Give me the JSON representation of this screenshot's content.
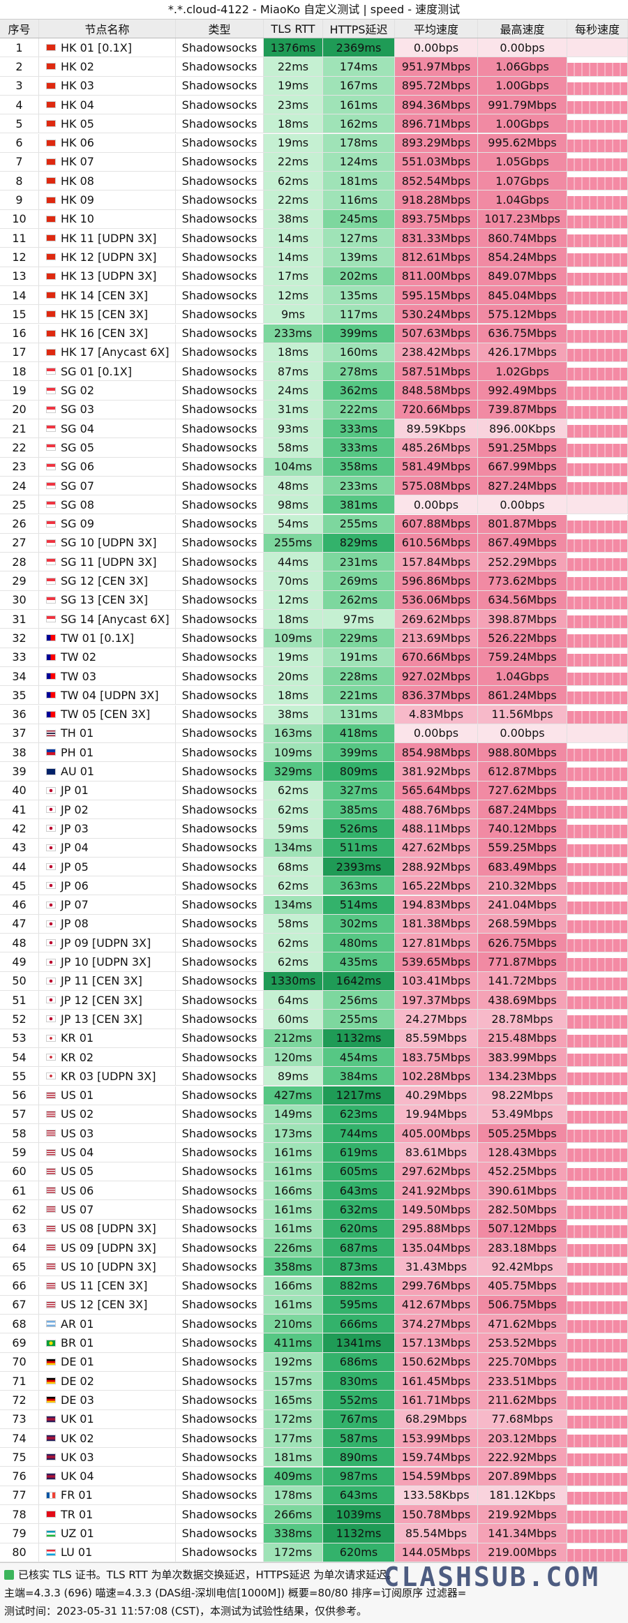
{
  "header": {
    "title": "*.*.cloud-4122 - MiaoKo 自定义测试 | speed - 速度测试"
  },
  "table": {
    "columns": [
      "序号",
      "节点名称",
      "类型",
      "TLS RTT",
      "HTTPS延迟",
      "平均速度",
      "最高速度",
      "每秒速度"
    ],
    "rows": [
      [
        "1",
        "HK 01 [0.1X]",
        "Shadowsocks",
        "1376ms",
        "2369ms",
        "0.00bps",
        "0.00bps"
      ],
      [
        "2",
        "HK 02",
        "Shadowsocks",
        "22ms",
        "174ms",
        "951.97Mbps",
        "1.06Gbps"
      ],
      [
        "3",
        "HK 03",
        "Shadowsocks",
        "19ms",
        "167ms",
        "895.72Mbps",
        "1.00Gbps"
      ],
      [
        "4",
        "HK 04",
        "Shadowsocks",
        "23ms",
        "161ms",
        "894.36Mbps",
        "991.79Mbps"
      ],
      [
        "5",
        "HK 05",
        "Shadowsocks",
        "18ms",
        "162ms",
        "896.71Mbps",
        "1.00Gbps"
      ],
      [
        "6",
        "HK 06",
        "Shadowsocks",
        "19ms",
        "178ms",
        "893.29Mbps",
        "995.62Mbps"
      ],
      [
        "7",
        "HK 07",
        "Shadowsocks",
        "22ms",
        "124ms",
        "551.03Mbps",
        "1.05Gbps"
      ],
      [
        "8",
        "HK 08",
        "Shadowsocks",
        "62ms",
        "181ms",
        "852.54Mbps",
        "1.07Gbps"
      ],
      [
        "9",
        "HK 09",
        "Shadowsocks",
        "22ms",
        "116ms",
        "918.28Mbps",
        "1.04Gbps"
      ],
      [
        "10",
        "HK 10",
        "Shadowsocks",
        "38ms",
        "245ms",
        "893.75Mbps",
        "1017.23Mbps"
      ],
      [
        "11",
        "HK 11 [UDPN 3X]",
        "Shadowsocks",
        "14ms",
        "127ms",
        "831.33Mbps",
        "860.74Mbps"
      ],
      [
        "12",
        "HK 12 [UDPN 3X]",
        "Shadowsocks",
        "14ms",
        "139ms",
        "812.61Mbps",
        "854.24Mbps"
      ],
      [
        "13",
        "HK 13 [UDPN 3X]",
        "Shadowsocks",
        "17ms",
        "202ms",
        "811.00Mbps",
        "849.07Mbps"
      ],
      [
        "14",
        "HK 14 [CEN 3X]",
        "Shadowsocks",
        "12ms",
        "135ms",
        "595.15Mbps",
        "845.04Mbps"
      ],
      [
        "15",
        "HK 15 [CEN 3X]",
        "Shadowsocks",
        "9ms",
        "117ms",
        "530.24Mbps",
        "575.12Mbps"
      ],
      [
        "16",
        "HK 16 [CEN 3X]",
        "Shadowsocks",
        "233ms",
        "399ms",
        "507.63Mbps",
        "636.75Mbps"
      ],
      [
        "17",
        "HK 17 [Anycast 6X]",
        "Shadowsocks",
        "18ms",
        "160ms",
        "238.42Mbps",
        "426.17Mbps"
      ],
      [
        "18",
        "SG 01 [0.1X]",
        "Shadowsocks",
        "87ms",
        "278ms",
        "587.51Mbps",
        "1.02Gbps"
      ],
      [
        "19",
        "SG 02",
        "Shadowsocks",
        "24ms",
        "362ms",
        "848.58Mbps",
        "992.49Mbps"
      ],
      [
        "20",
        "SG 03",
        "Shadowsocks",
        "31ms",
        "222ms",
        "720.66Mbps",
        "739.87Mbps"
      ],
      [
        "21",
        "SG 04",
        "Shadowsocks",
        "93ms",
        "333ms",
        "89.59Kbps",
        "896.00Kbps"
      ],
      [
        "22",
        "SG 05",
        "Shadowsocks",
        "58ms",
        "333ms",
        "485.26Mbps",
        "591.25Mbps"
      ],
      [
        "23",
        "SG 06",
        "Shadowsocks",
        "104ms",
        "358ms",
        "581.49Mbps",
        "667.99Mbps"
      ],
      [
        "24",
        "SG 07",
        "Shadowsocks",
        "48ms",
        "233ms",
        "575.08Mbps",
        "827.24Mbps"
      ],
      [
        "25",
        "SG 08",
        "Shadowsocks",
        "98ms",
        "381ms",
        "0.00bps",
        "0.00bps"
      ],
      [
        "26",
        "SG 09",
        "Shadowsocks",
        "54ms",
        "255ms",
        "607.88Mbps",
        "801.87Mbps"
      ],
      [
        "27",
        "SG 10 [UDPN 3X]",
        "Shadowsocks",
        "255ms",
        "829ms",
        "610.56Mbps",
        "867.49Mbps"
      ],
      [
        "28",
        "SG 11 [UDPN 3X]",
        "Shadowsocks",
        "44ms",
        "231ms",
        "157.84Mbps",
        "252.29Mbps"
      ],
      [
        "29",
        "SG 12 [CEN 3X]",
        "Shadowsocks",
        "70ms",
        "269ms",
        "596.86Mbps",
        "773.62Mbps"
      ],
      [
        "30",
        "SG 13 [CEN 3X]",
        "Shadowsocks",
        "12ms",
        "262ms",
        "536.06Mbps",
        "634.56Mbps"
      ],
      [
        "31",
        "SG 14 [Anycast 6X]",
        "Shadowsocks",
        "18ms",
        "97ms",
        "269.62Mbps",
        "398.87Mbps"
      ],
      [
        "32",
        "TW 01 [0.1X]",
        "Shadowsocks",
        "109ms",
        "229ms",
        "213.69Mbps",
        "526.22Mbps"
      ],
      [
        "33",
        "TW 02",
        "Shadowsocks",
        "19ms",
        "191ms",
        "670.66Mbps",
        "759.24Mbps"
      ],
      [
        "34",
        "TW 03",
        "Shadowsocks",
        "20ms",
        "228ms",
        "927.02Mbps",
        "1.04Gbps"
      ],
      [
        "35",
        "TW 04 [UDPN 3X]",
        "Shadowsocks",
        "18ms",
        "221ms",
        "836.37Mbps",
        "861.24Mbps"
      ],
      [
        "36",
        "TW 05 [CEN 3X]",
        "Shadowsocks",
        "38ms",
        "131ms",
        "4.83Mbps",
        "11.56Mbps"
      ],
      [
        "37",
        "TH 01",
        "Shadowsocks",
        "163ms",
        "418ms",
        "0.00bps",
        "0.00bps"
      ],
      [
        "38",
        "PH 01",
        "Shadowsocks",
        "109ms",
        "399ms",
        "854.98Mbps",
        "988.80Mbps"
      ],
      [
        "39",
        "AU 01",
        "Shadowsocks",
        "329ms",
        "809ms",
        "381.92Mbps",
        "612.87Mbps"
      ],
      [
        "40",
        "JP 01",
        "Shadowsocks",
        "62ms",
        "327ms",
        "565.64Mbps",
        "727.62Mbps"
      ],
      [
        "41",
        "JP 02",
        "Shadowsocks",
        "62ms",
        "385ms",
        "488.76Mbps",
        "687.24Mbps"
      ],
      [
        "42",
        "JP 03",
        "Shadowsocks",
        "59ms",
        "526ms",
        "488.11Mbps",
        "740.12Mbps"
      ],
      [
        "43",
        "JP 04",
        "Shadowsocks",
        "134ms",
        "511ms",
        "427.62Mbps",
        "559.25Mbps"
      ],
      [
        "44",
        "JP 05",
        "Shadowsocks",
        "68ms",
        "2393ms",
        "288.92Mbps",
        "683.49Mbps"
      ],
      [
        "45",
        "JP 06",
        "Shadowsocks",
        "62ms",
        "363ms",
        "165.22Mbps",
        "210.32Mbps"
      ],
      [
        "46",
        "JP 07",
        "Shadowsocks",
        "134ms",
        "514ms",
        "194.83Mbps",
        "241.04Mbps"
      ],
      [
        "47",
        "JP 08",
        "Shadowsocks",
        "58ms",
        "302ms",
        "181.38Mbps",
        "268.59Mbps"
      ],
      [
        "48",
        "JP 09 [UDPN 3X]",
        "Shadowsocks",
        "62ms",
        "480ms",
        "127.81Mbps",
        "626.75Mbps"
      ],
      [
        "49",
        "JP 10 [UDPN 3X]",
        "Shadowsocks",
        "62ms",
        "435ms",
        "539.65Mbps",
        "771.87Mbps"
      ],
      [
        "50",
        "JP 11 [CEN 3X]",
        "Shadowsocks",
        "1330ms",
        "1642ms",
        "103.41Mbps",
        "141.72Mbps"
      ],
      [
        "51",
        "JP 12 [CEN 3X]",
        "Shadowsocks",
        "64ms",
        "256ms",
        "197.37Mbps",
        "438.69Mbps"
      ],
      [
        "52",
        "JP 13 [CEN 3X]",
        "Shadowsocks",
        "60ms",
        "255ms",
        "24.27Mbps",
        "28.78Mbps"
      ],
      [
        "53",
        "KR 01",
        "Shadowsocks",
        "212ms",
        "1132ms",
        "85.59Mbps",
        "215.48Mbps"
      ],
      [
        "54",
        "KR 02",
        "Shadowsocks",
        "120ms",
        "454ms",
        "183.75Mbps",
        "383.99Mbps"
      ],
      [
        "55",
        "KR 03 [UDPN 3X]",
        "Shadowsocks",
        "89ms",
        "384ms",
        "102.28Mbps",
        "134.23Mbps"
      ],
      [
        "56",
        "US 01",
        "Shadowsocks",
        "427ms",
        "1217ms",
        "40.29Mbps",
        "98.22Mbps"
      ],
      [
        "57",
        "US 02",
        "Shadowsocks",
        "149ms",
        "623ms",
        "19.94Mbps",
        "53.49Mbps"
      ],
      [
        "58",
        "US 03",
        "Shadowsocks",
        "173ms",
        "744ms",
        "405.00Mbps",
        "505.25Mbps"
      ],
      [
        "59",
        "US 04",
        "Shadowsocks",
        "161ms",
        "619ms",
        "83.61Mbps",
        "128.43Mbps"
      ],
      [
        "60",
        "US 05",
        "Shadowsocks",
        "161ms",
        "605ms",
        "297.62Mbps",
        "452.25Mbps"
      ],
      [
        "61",
        "US 06",
        "Shadowsocks",
        "166ms",
        "643ms",
        "241.92Mbps",
        "390.61Mbps"
      ],
      [
        "62",
        "US 07",
        "Shadowsocks",
        "161ms",
        "632ms",
        "149.50Mbps",
        "282.50Mbps"
      ],
      [
        "63",
        "US 08 [UDPN 3X]",
        "Shadowsocks",
        "161ms",
        "620ms",
        "295.88Mbps",
        "507.12Mbps"
      ],
      [
        "64",
        "US 09 [UDPN 3X]",
        "Shadowsocks",
        "226ms",
        "687ms",
        "135.04Mbps",
        "283.18Mbps"
      ],
      [
        "65",
        "US 10 [UDPN 3X]",
        "Shadowsocks",
        "358ms",
        "873ms",
        "31.43Mbps",
        "92.42Mbps"
      ],
      [
        "66",
        "US 11 [CEN 3X]",
        "Shadowsocks",
        "166ms",
        "882ms",
        "299.76Mbps",
        "405.75Mbps"
      ],
      [
        "67",
        "US 12 [CEN 3X]",
        "Shadowsocks",
        "161ms",
        "595ms",
        "412.67Mbps",
        "506.75Mbps"
      ],
      [
        "68",
        "AR 01",
        "Shadowsocks",
        "210ms",
        "666ms",
        "374.27Mbps",
        "471.62Mbps"
      ],
      [
        "69",
        "BR 01",
        "Shadowsocks",
        "411ms",
        "1341ms",
        "157.13Mbps",
        "253.52Mbps"
      ],
      [
        "70",
        "DE 01",
        "Shadowsocks",
        "192ms",
        "686ms",
        "150.62Mbps",
        "225.70Mbps"
      ],
      [
        "71",
        "DE 02",
        "Shadowsocks",
        "157ms",
        "830ms",
        "161.45Mbps",
        "233.51Mbps"
      ],
      [
        "72",
        "DE 03",
        "Shadowsocks",
        "165ms",
        "552ms",
        "161.71Mbps",
        "211.62Mbps"
      ],
      [
        "73",
        "UK 01",
        "Shadowsocks",
        "172ms",
        "767ms",
        "68.29Mbps",
        "77.68Mbps"
      ],
      [
        "74",
        "UK 02",
        "Shadowsocks",
        "177ms",
        "587ms",
        "153.99Mbps",
        "203.12Mbps"
      ],
      [
        "75",
        "UK 03",
        "Shadowsocks",
        "181ms",
        "890ms",
        "159.74Mbps",
        "222.92Mbps"
      ],
      [
        "76",
        "UK 04",
        "Shadowsocks",
        "409ms",
        "987ms",
        "154.59Mbps",
        "207.89Mbps"
      ],
      [
        "77",
        "FR 01",
        "Shadowsocks",
        "178ms",
        "643ms",
        "133.58Kbps",
        "181.12Kbps"
      ],
      [
        "78",
        "TR 01",
        "Shadowsocks",
        "266ms",
        "1039ms",
        "150.78Mbps",
        "219.92Mbps"
      ],
      [
        "79",
        "UZ 01",
        "Shadowsocks",
        "338ms",
        "1132ms",
        "85.54Mbps",
        "141.34Mbps"
      ],
      [
        "80",
        "LU 01",
        "Shadowsocks",
        "172ms",
        "620ms",
        "144.05Mbps",
        "219.00Mbps"
      ]
    ]
  },
  "footer": [
    "已核实 TLS 证书。TLS RTT 为单次数据交换延迟，HTTPS延迟 为单次请求延迟。",
    "主端=4.3.3 (696) 喵速=4.3.3 (DAS组-深圳电信[1000M]) 概要=80/80 排序=订阅原序 过滤器=",
    "测试时间：2023-05-31 11:57:08 (CST)，本测试为试验性结果，仅供参考。"
  ],
  "watermark": "CLASHSUB.COM"
}
